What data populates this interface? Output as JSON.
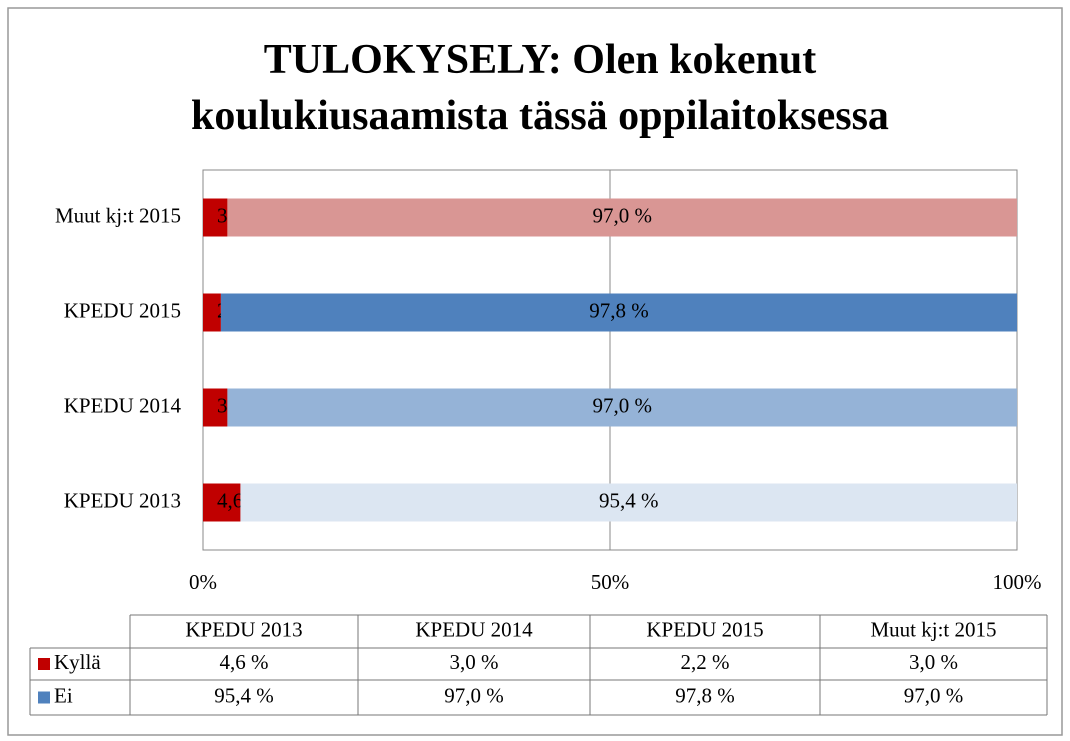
{
  "chart_data": {
    "type": "stacked_bar_horizontal_percent",
    "title": "TULOKYSELY: Olen kokenut koulukiusaamista tässä oppilaitoksessa",
    "categories": [
      "KPEDU 2013",
      "KPEDU 2014",
      "KPEDU 2015",
      "Muut kj:t 2015"
    ],
    "series": [
      {
        "name": "Kyllä",
        "color": "#c00000",
        "values": [
          4.6,
          3.0,
          2.2,
          3.0
        ],
        "value_labels": [
          "4,6 %",
          "3,0 %",
          "2,2 %",
          "3,0 %"
        ]
      },
      {
        "name": "Ei",
        "color": "#4f81bd",
        "point_colors": [
          "#dce6f2",
          "#95b3d7",
          "#4f81bd",
          "#d99694"
        ],
        "values": [
          95.4,
          97.0,
          97.8,
          97.0
        ],
        "value_labels": [
          "95,4 %",
          "97,0 %",
          "97,8 %",
          "97,0 %"
        ]
      }
    ],
    "xlim": [
      0,
      100
    ],
    "xticks": [
      {
        "value": 0,
        "label": "0%"
      },
      {
        "value": 50,
        "label": "50%"
      },
      {
        "value": 100,
        "label": "100%"
      }
    ],
    "grid": true,
    "data_table": true
  }
}
